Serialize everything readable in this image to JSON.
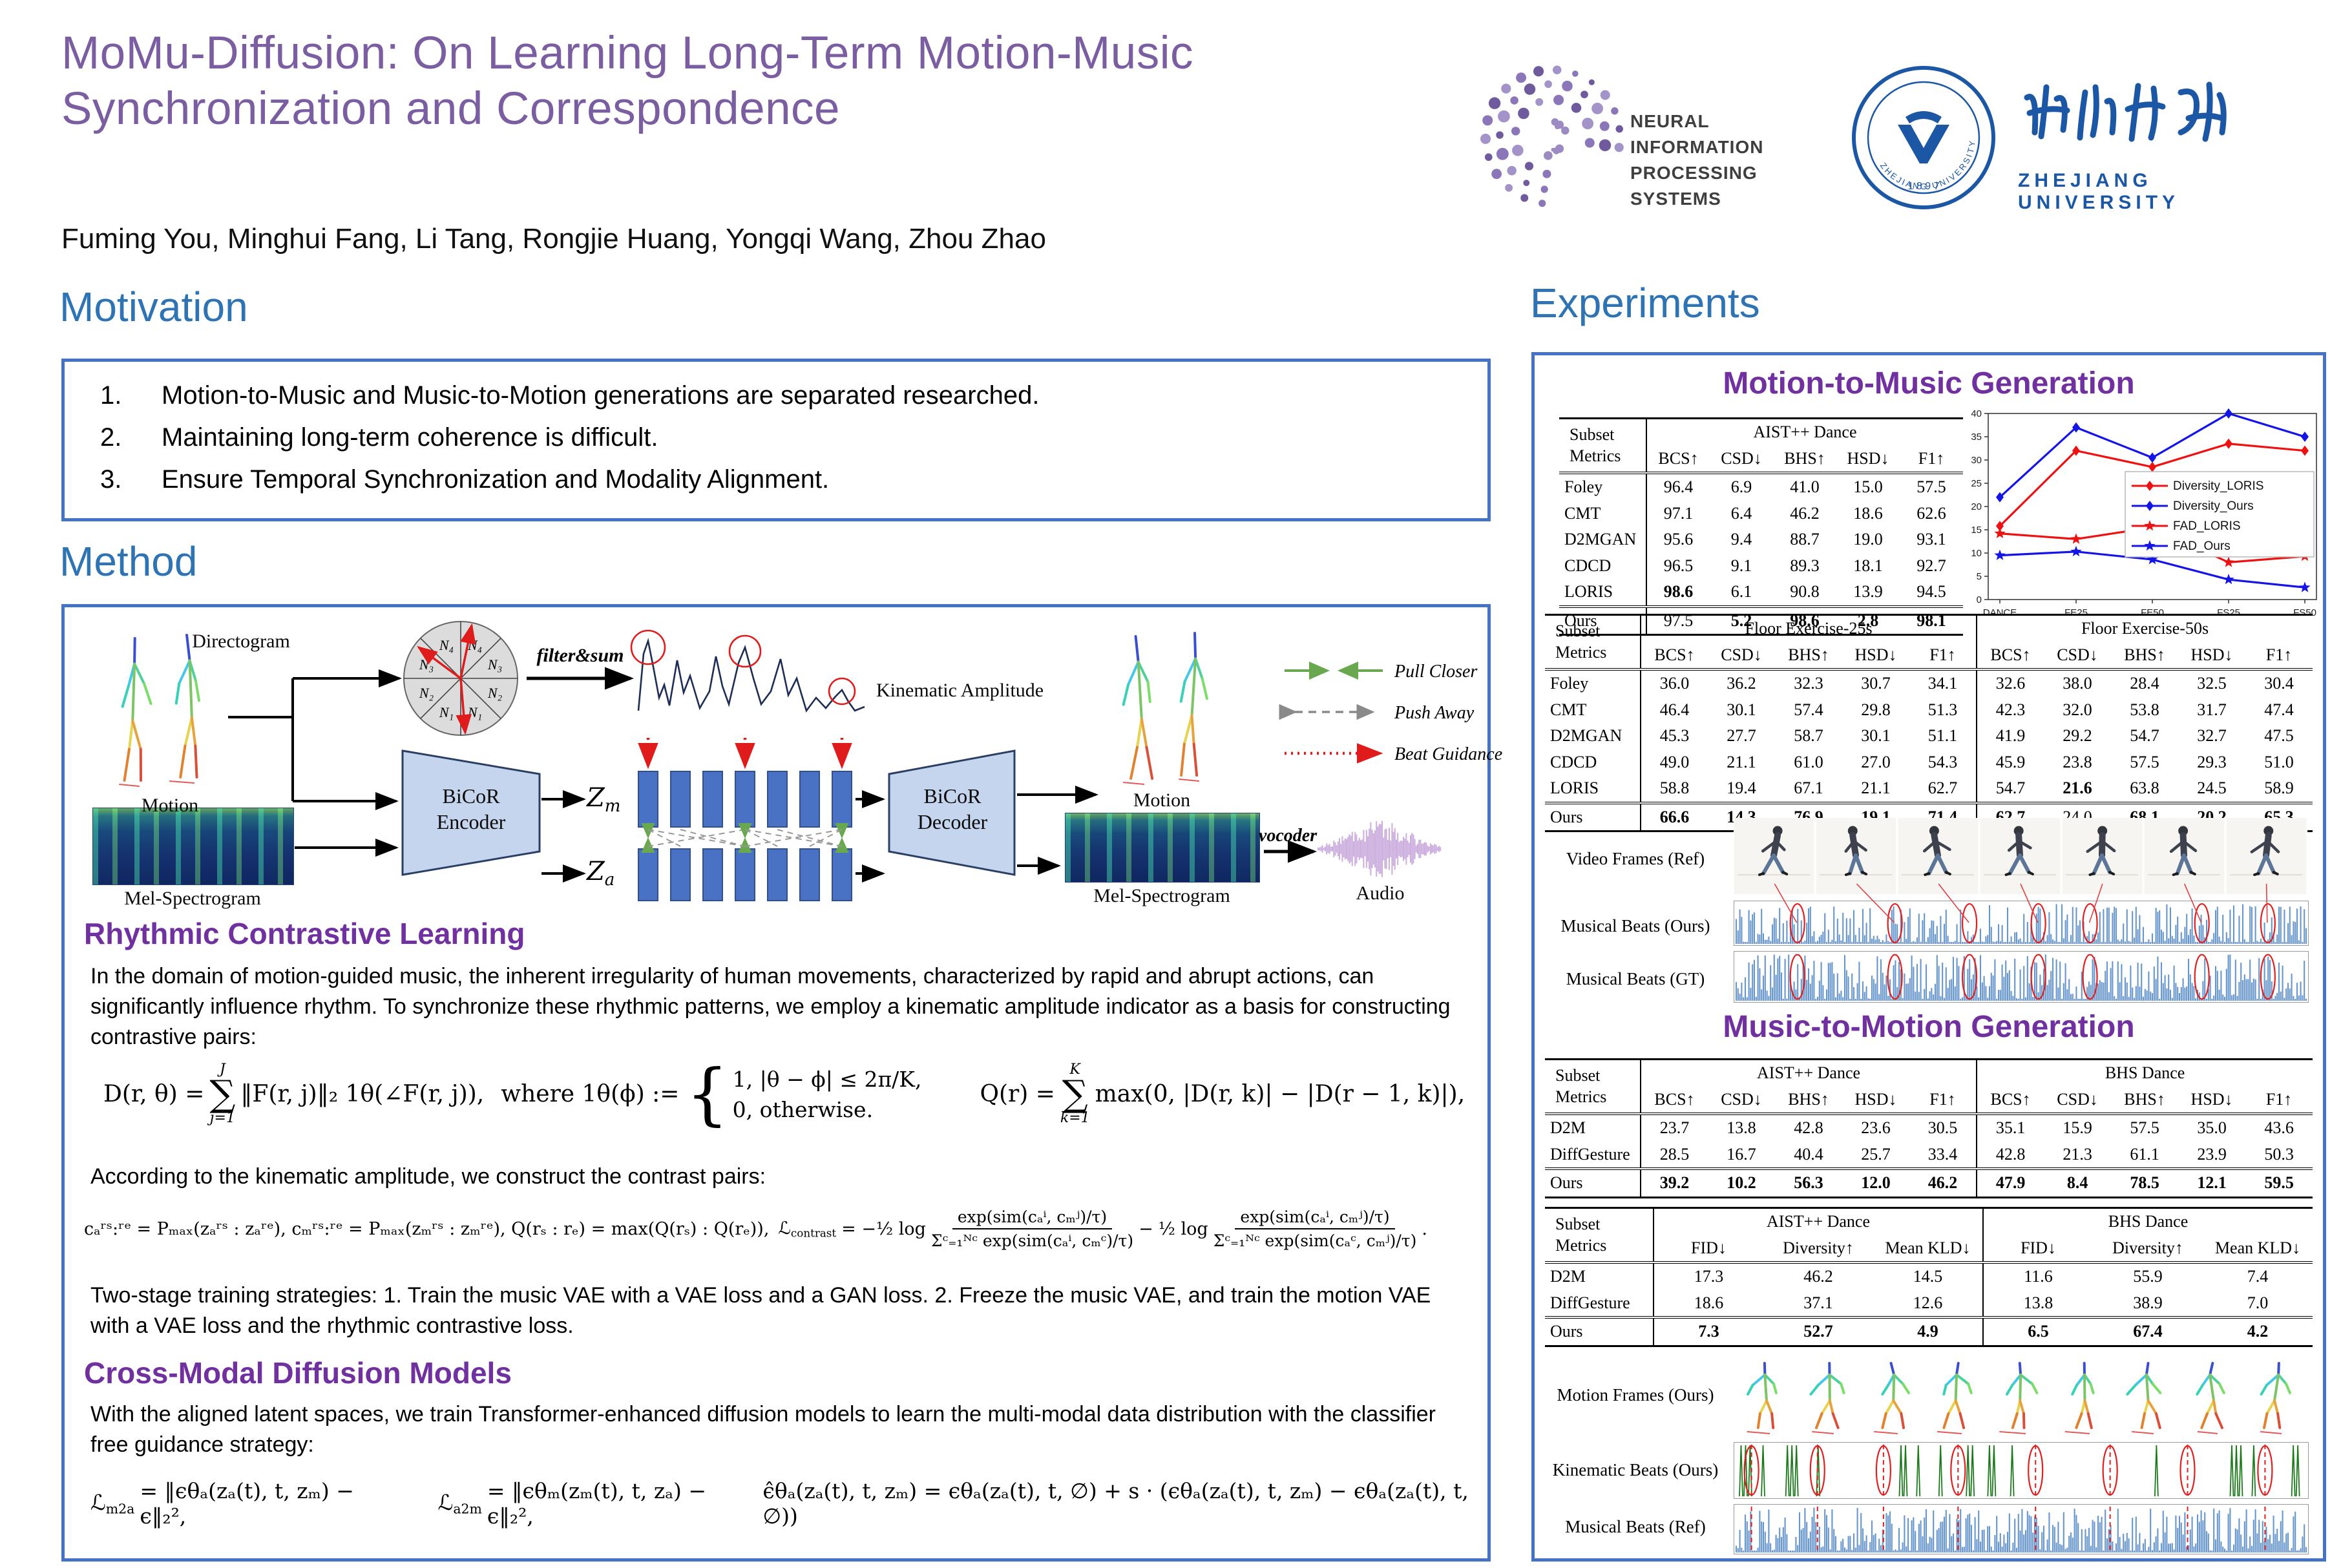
{
  "poster": {
    "title_line1": "MoMu-Diffusion: On Learning Long-Term Motion-Music",
    "title_line2": "Synchronization and Correspondence",
    "authors": "Fuming You, Minghui Fang, Li Tang, Rongjie Huang, Yongqi Wang, Zhou Zhao"
  },
  "logos": {
    "neurips_line1": "NEURAL INFORMATION",
    "neurips_line2": "PROCESSING SYSTEMS",
    "zju_cn": "浙江大学",
    "zju_en": "ZHEJIANG  UNIVERSITY",
    "zju_year": "1 8 9 7",
    "zju_ring": "ZHEJIANG UNIVERSITY"
  },
  "sections": {
    "motivation": "Motivation",
    "method": "Method",
    "experiments": "Experiments"
  },
  "motivation_items": [
    {
      "num": "1.",
      "text": "Motion-to-Music and Music-to-Motion generations are separated researched."
    },
    {
      "num": "2.",
      "text": "Maintaining long-term coherence is difficult."
    },
    {
      "num": "3.",
      "text": "Ensure Temporal Synchronization and Modality Alignment."
    }
  ],
  "diagram": {
    "motion_left": "Motion",
    "mel_left": "Mel-Spectrogram",
    "directogram": "Directogram",
    "filter_sum": "filter&sum",
    "kinematic_amplitude": "Kinematic Amplitude",
    "encoder_line1": "BiCoR",
    "encoder_line2": "Encoder",
    "decoder_line1": "BiCoR",
    "decoder_line2": "Decoder",
    "zm_base": "Z",
    "zm_sub": "m",
    "za_base": "Z",
    "za_sub": "a",
    "motion_right": "Motion",
    "mel_right": "Mel-Spectrogram",
    "vocoder": "vocoder",
    "audio": "Audio",
    "wheel": [
      "N₄",
      "N₄",
      "N₃",
      "N₃",
      "N₂",
      "N₂",
      "N₁",
      "N₁"
    ],
    "legend": [
      {
        "label": "Pull Closer",
        "color": "#6aa84f",
        "style": "solid"
      },
      {
        "label": "Push Away",
        "color": "#8a8a8a",
        "style": "dashed"
      },
      {
        "label": "Beat Guidance",
        "color": "#e01b1b",
        "style": "dotted"
      }
    ]
  },
  "rcl": {
    "heading": "Rhythmic Contrastive Learning",
    "para": "In the domain of motion-guided music, the inherent irregularity of human movements, characterized by rapid and abrupt actions, can significantly influence rhythm. To synchronize these rhythmic patterns, we employ a kinematic amplitude indicator as a basis for constructing contrastive pairs:",
    "f1_lhs": "D(r, θ) =",
    "f1_sum_top": "J",
    "f1_sum_bot": "j=1",
    "f1_body": "‖F(r, j)‖₂ 1θ(∠F(r, j)),",
    "f1_where": "where 1θ(ϕ) :=",
    "f1_case1": "1,    |θ − ϕ| ≤ 2π/K,",
    "f1_case2": "0,    otherwise.",
    "f1_q_lhs": "Q(r) =",
    "f1_q_sum_top": "K",
    "f1_q_sum_bot": "k=1",
    "f1_q_body": "max(0, |D(r, k)| − |D(r − 1, k)|),",
    "contrast_intro": "According to the kinematic amplitude, we construct the contrast pairs:",
    "f2_pairs": "cₐʳˢ:ʳᵉ = Pₘₐₓ(zₐʳˢ : zₐʳᵉ),  cₘʳˢ:ʳᵉ = Pₘₐₓ(zₘʳˢ : zₘʳᵉ),  Q(rₛ : rₑ) = max(Q(rₛ) : Q(rₑ)),",
    "f2_L": "ℒ",
    "f2_Lsub": "contrast",
    "f2_eq": "= −",
    "f2_half1": "½ log",
    "frac1_num": "exp(sim(cₐⁱ, cₘʲ)/τ)",
    "frac1_den": "Σᶜ₌₁ᴺᶜ exp(sim(cₐⁱ, cₘᶜ)/τ)",
    "f2_minus": "−",
    "f2_half2": "½ log",
    "frac2_num": "exp(sim(cₐⁱ, cₘʲ)/τ)",
    "frac2_den": "Σᶜ₌₁ᴺᶜ exp(sim(cₐᶜ, cₘʲ)/τ)",
    "f2_end": ".",
    "two_stage": "Two-stage training strategies: 1. Train the music VAE with a VAE loss and a GAN loss. 2. Freeze the music VAE, and train the motion VAE with a VAE loss and the rhythmic contrastive loss."
  },
  "cmdm": {
    "heading": "Cross-Modal Diffusion Models",
    "para": "With the aligned latent spaces, we train Transformer-enhanced diffusion models to learn the multi-modal data distribution with the classifier free guidance strategy:",
    "fa_L": "ℒ",
    "fa_sub": "m2a",
    "fa_body": "= ‖ϵθₐ(zₐ(t), t, zₘ) − ϵ‖₂²,",
    "fb_L": "ℒ",
    "fb_sub": "a2m",
    "fb_body": "= ‖ϵθₘ(zₘ(t), t, zₐ) − ϵ‖₂²,",
    "fc_body": "ϵ̂θₐ(zₐ(t), t, zₘ) = ϵθₐ(zₐ(t), t, ∅) + s · (ϵθₐ(zₐ(t), t, zₘ) − ϵθₐ(zₐ(t), t, ∅))"
  },
  "experiments": {
    "m2m_heading": "Motion-to-Music Generation",
    "m2mo_heading": "Music-to-Motion Generation",
    "fig1_labels": [
      "Video Frames (Ref)",
      "Musical Beats (Ours)",
      "Musical Beats (GT)"
    ],
    "fig2_labels": [
      "Motion Frames (Ours)",
      "Kinematic Beats (Ours)",
      "Musical Beats (Ref)"
    ],
    "table1": {
      "corner": [
        "Subset",
        "Metrics"
      ],
      "group": "AIST++ Dance",
      "cols": [
        "BCS↑",
        "CSD↓",
        "BHS↑",
        "HSD↓",
        "F1↑"
      ],
      "rows": [
        {
          "name": "Foley",
          "values": [
            "96.4",
            "6.9",
            "41.0",
            "15.0",
            "57.5"
          ]
        },
        {
          "name": "CMT",
          "values": [
            "97.1",
            "6.4",
            "46.2",
            "18.6",
            "62.6"
          ]
        },
        {
          "name": "D2MGAN",
          "values": [
            "95.6",
            "9.4",
            "88.7",
            "19.0",
            "93.1"
          ]
        },
        {
          "name": "CDCD",
          "values": [
            "96.5",
            "9.1",
            "89.3",
            "18.1",
            "92.7"
          ]
        },
        {
          "name": "LORIS",
          "values": [
            "98.6",
            "6.1",
            "90.8",
            "13.9",
            "94.5"
          ],
          "bold": [
            1,
            0,
            0,
            0,
            0
          ]
        }
      ],
      "ours": [
        {
          "name": "Ours",
          "values": [
            "97.5",
            "5.2",
            "98.6",
            "2.8",
            "98.1"
          ],
          "bold": [
            0,
            1,
            1,
            1,
            1
          ]
        }
      ]
    },
    "table2": {
      "corner": [
        "Subset",
        "Metrics"
      ],
      "groups": [
        "Floor Exercise-25s",
        "Floor Exercise-50s"
      ],
      "cols": [
        "BCS↑",
        "CSD↓",
        "BHS↑",
        "HSD↓",
        "F1↑",
        "BCS↑",
        "CSD↓",
        "BHS↑",
        "HSD↓",
        "F1↑"
      ],
      "rows": [
        {
          "name": "Foley",
          "values": [
            "36.0",
            "36.2",
            "32.3",
            "30.7",
            "34.1",
            "32.6",
            "38.0",
            "28.4",
            "32.5",
            "30.4"
          ]
        },
        {
          "name": "CMT",
          "values": [
            "46.4",
            "30.1",
            "57.4",
            "29.8",
            "51.3",
            "42.3",
            "32.0",
            "53.8",
            "31.7",
            "47.4"
          ]
        },
        {
          "name": "D2MGAN",
          "values": [
            "45.3",
            "27.7",
            "58.7",
            "30.1",
            "51.1",
            "41.9",
            "29.2",
            "54.7",
            "32.7",
            "47.5"
          ]
        },
        {
          "name": "CDCD",
          "values": [
            "49.0",
            "21.1",
            "61.0",
            "27.0",
            "54.3",
            "45.9",
            "23.8",
            "57.5",
            "29.3",
            "51.0"
          ]
        },
        {
          "name": "LORIS",
          "values": [
            "58.8",
            "19.4",
            "67.1",
            "21.1",
            "62.7",
            "54.7",
            "21.6",
            "63.8",
            "24.5",
            "58.9"
          ],
          "bold": [
            0,
            0,
            0,
            0,
            0,
            0,
            1,
            0,
            0,
            0
          ]
        }
      ],
      "ours": [
        {
          "name": "Ours",
          "values": [
            "66.6",
            "14.3",
            "76.9",
            "19.1",
            "71.4",
            "62.7",
            "24.0",
            "68.1",
            "20.2",
            "65.3"
          ],
          "bold": [
            1,
            1,
            1,
            1,
            1,
            1,
            0,
            1,
            1,
            1
          ]
        }
      ]
    },
    "table3": {
      "corner": [
        "Subset",
        "Metrics"
      ],
      "groups": [
        "AIST++ Dance",
        "BHS Dance"
      ],
      "cols": [
        "BCS↑",
        "CSD↓",
        "BHS↑",
        "HSD↓",
        "F1↑",
        "BCS↑",
        "CSD↓",
        "BHS↑",
        "HSD↓",
        "F1↑"
      ],
      "rows": [
        {
          "name": "D2M",
          "values": [
            "23.7",
            "13.8",
            "42.8",
            "23.6",
            "30.5",
            "35.1",
            "15.9",
            "57.5",
            "35.0",
            "43.6"
          ]
        },
        {
          "name": "DiffGesture",
          "values": [
            "28.5",
            "16.7",
            "40.4",
            "25.7",
            "33.4",
            "42.8",
            "21.3",
            "61.1",
            "23.9",
            "50.3"
          ]
        }
      ],
      "ours": [
        {
          "name": "Ours",
          "values": [
            "39.2",
            "10.2",
            "56.3",
            "12.0",
            "46.2",
            "47.9",
            "8.4",
            "78.5",
            "12.1",
            "59.5"
          ],
          "bold": [
            1,
            1,
            1,
            1,
            1,
            1,
            1,
            1,
            1,
            1
          ]
        }
      ]
    },
    "table4": {
      "corner": [
        "Subset",
        "Metrics"
      ],
      "groups": [
        "AIST++ Dance",
        "BHS Dance"
      ],
      "cols": [
        "FID↓",
        "Diversity↑",
        "Mean KLD↓",
        "FID↓",
        "Diversity↑",
        "Mean KLD↓"
      ],
      "rows": [
        {
          "name": "D2M",
          "values": [
            "17.3",
            "46.2",
            "14.5",
            "11.6",
            "55.9",
            "7.4"
          ]
        },
        {
          "name": "DiffGesture",
          "values": [
            "18.6",
            "37.1",
            "12.6",
            "13.8",
            "38.9",
            "7.0"
          ]
        }
      ],
      "ours": [
        {
          "name": "Ours",
          "values": [
            "7.3",
            "52.7",
            "4.9",
            "6.5",
            "67.4",
            "4.2"
          ],
          "bold": [
            1,
            1,
            1,
            1,
            1,
            1
          ]
        }
      ]
    }
  },
  "chart_data": {
    "type": "line",
    "x": [
      "DANCE",
      "FE25",
      "FE50",
      "FS25",
      "FS50"
    ],
    "series": [
      {
        "name": "Diversity_LORIS",
        "color": "#ee1111",
        "marker": "diamond",
        "values": [
          15.8,
          32.0,
          28.5,
          33.5,
          32.0
        ]
      },
      {
        "name": "Diversity_Ours",
        "color": "#1414e6",
        "marker": "diamond",
        "values": [
          22.0,
          37.0,
          30.5,
          40.0,
          35.0
        ]
      },
      {
        "name": "FAD_LORIS",
        "color": "#ee1111",
        "marker": "star",
        "values": [
          14.2,
          13.0,
          15.5,
          8.0,
          9.3
        ]
      },
      {
        "name": "FAD_Ours",
        "color": "#1414e6",
        "marker": "star",
        "values": [
          9.5,
          10.3,
          8.6,
          4.3,
          2.6
        ]
      }
    ],
    "ylim": [
      0,
      40
    ],
    "yticks": [
      0,
      5,
      10,
      15,
      20,
      25,
      30,
      35,
      40
    ],
    "xlabel": "",
    "ylabel": "",
    "grid": false,
    "legend_position": "middle-right"
  }
}
